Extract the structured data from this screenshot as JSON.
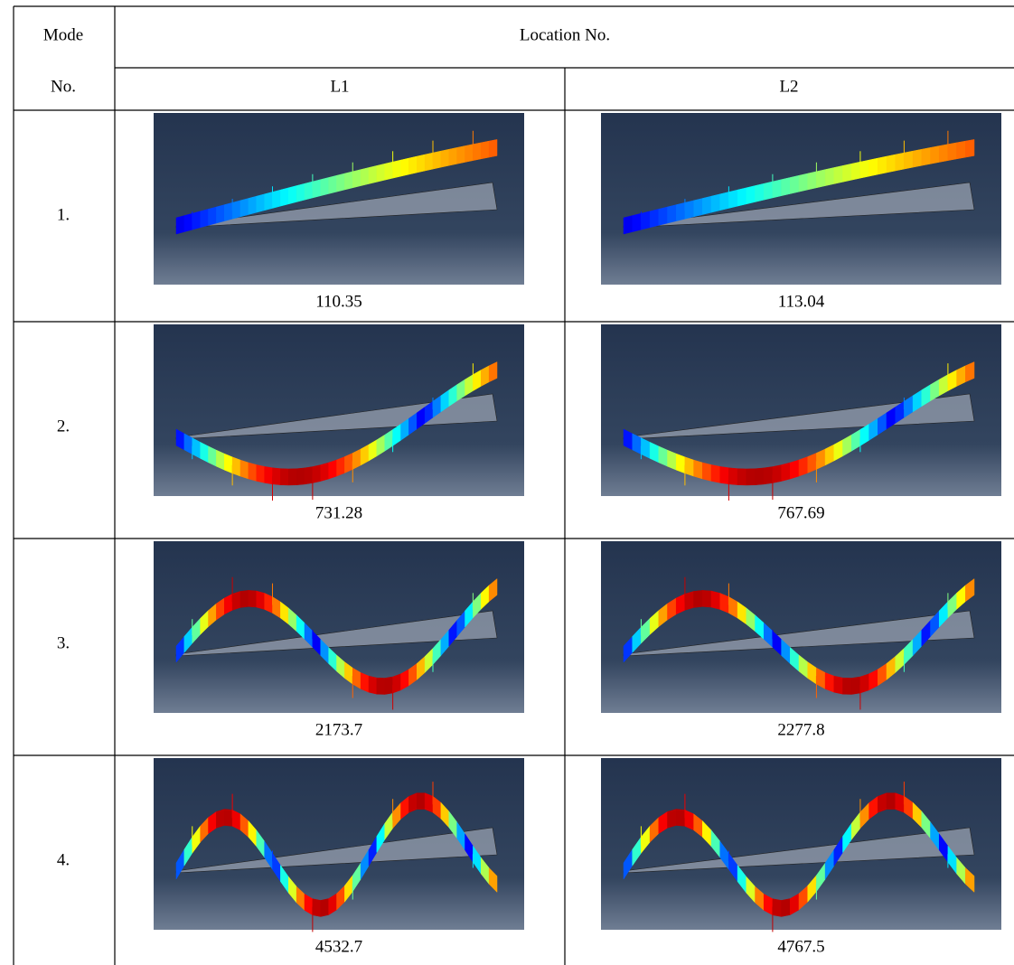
{
  "table": {
    "header": {
      "mode_label": [
        "Mode",
        "No."
      ],
      "location_label": "Location No.",
      "columns": [
        "L1",
        "L2"
      ]
    },
    "rows": [
      {
        "mode": "1.",
        "values": [
          "110.35",
          "113.04"
        ]
      },
      {
        "mode": "2.",
        "values": [
          "731.28",
          "767.69"
        ]
      },
      {
        "mode": "3.",
        "values": [
          "2173.7",
          "2277.8"
        ]
      },
      {
        "mode": "4.",
        "values": [
          "4532.7",
          "4767.5"
        ]
      }
    ]
  }
}
